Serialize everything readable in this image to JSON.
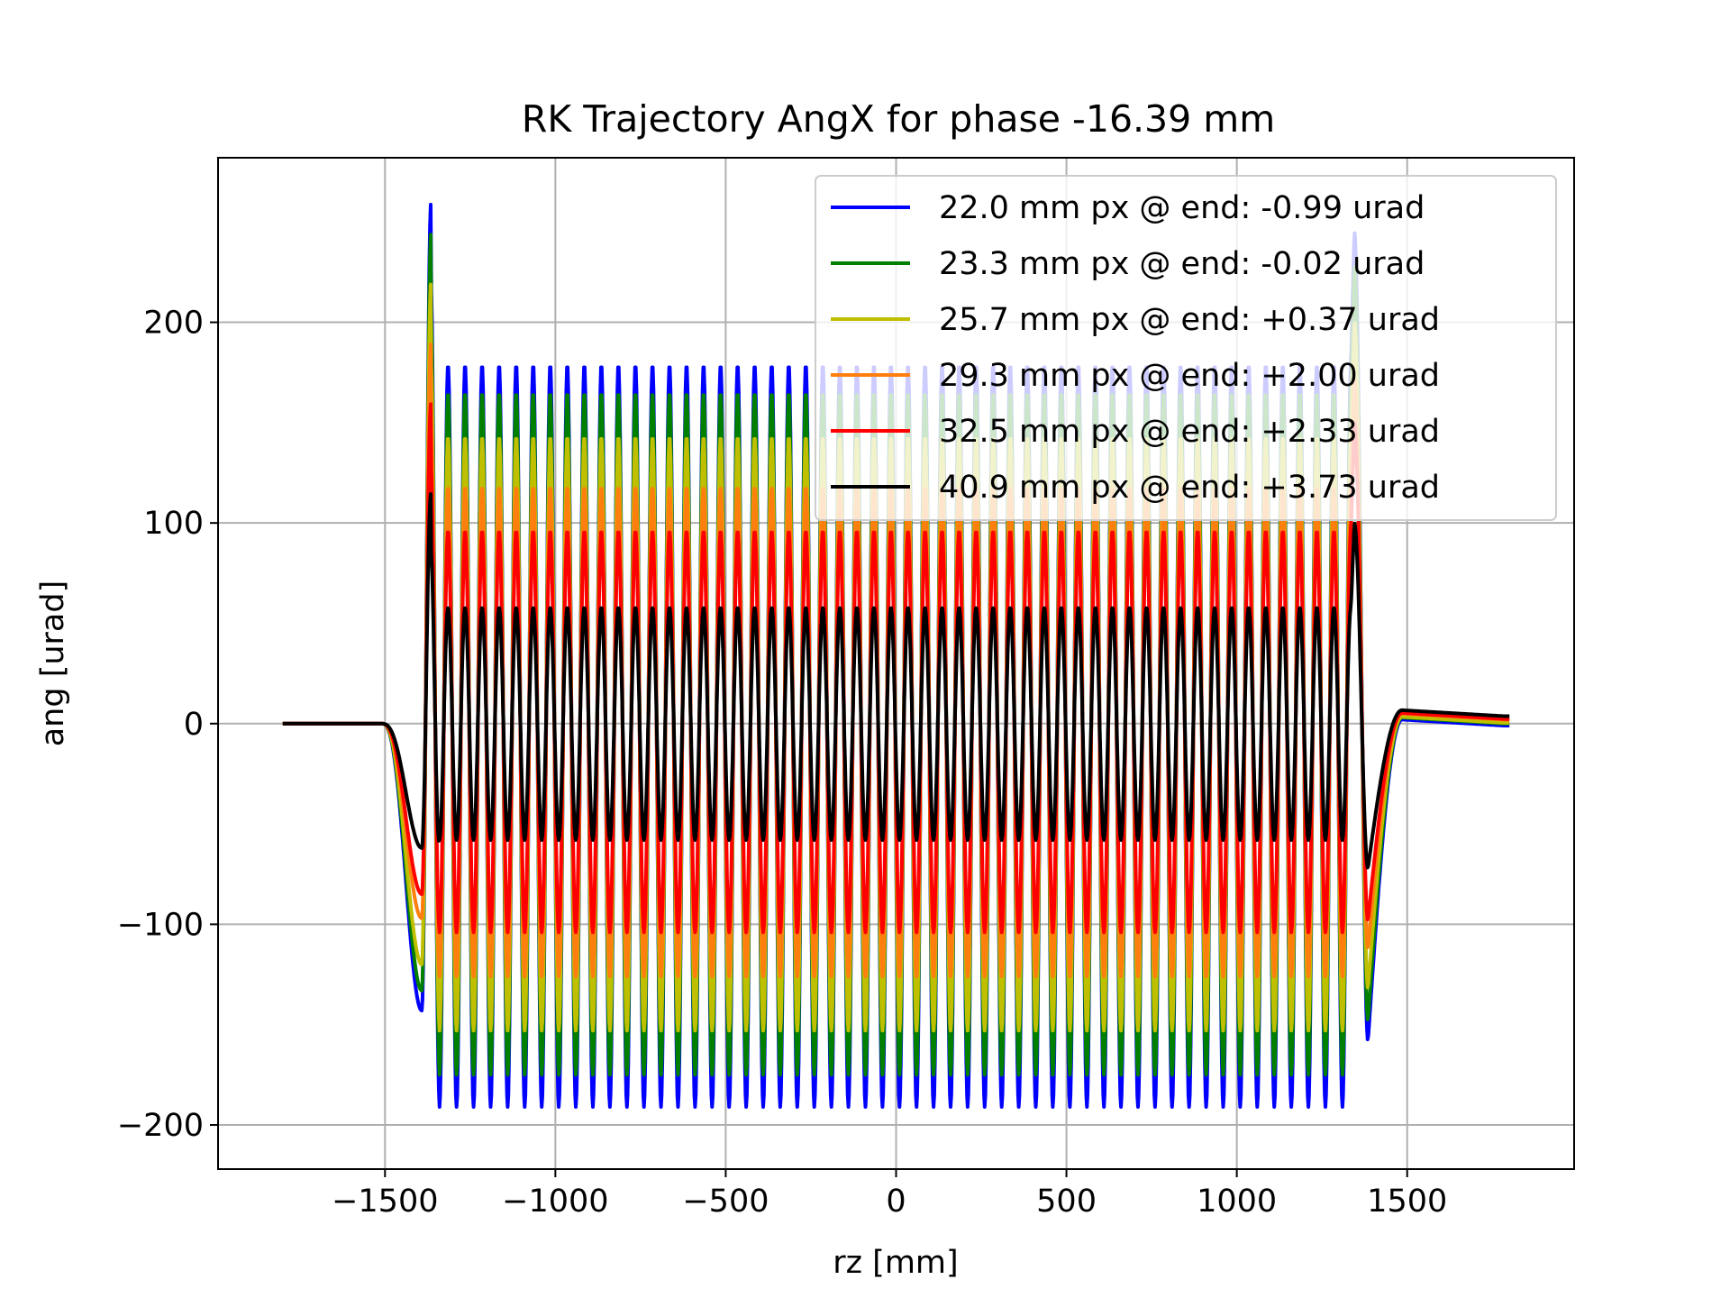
{
  "chart_data": {
    "type": "line",
    "title": "RK Trajectory AngX for phase -16.39 mm",
    "xlabel": "rz [mm]",
    "ylabel": "ang [urad]",
    "xlim": [
      -1990,
      1990
    ],
    "ylim": [
      -222,
      282
    ],
    "xticks": [
      -1500,
      -1000,
      -500,
      0,
      500,
      1000,
      1500
    ],
    "xtick_labels": [
      "−1500",
      "−1000",
      "−500",
      "0",
      "500",
      "1000",
      "1500"
    ],
    "yticks": [
      -200,
      -100,
      0,
      100,
      200
    ],
    "ytick_labels": [
      "−200",
      "−100",
      "0",
      "100",
      "200"
    ],
    "grid": true,
    "legend_position": "top-right",
    "x_range": [
      -1800,
      1800
    ],
    "undulator": {
      "start": -1350,
      "end": 1350,
      "period": 50,
      "first_peak_x": -1375,
      "first_trough_x": -1392,
      "last_peak_x": 1345,
      "last_trough_x": 1365
    },
    "series": [
      {
        "name": "22.0 mm px @ end: -0.99 urad",
        "color": "#0000ff",
        "amplitude": 185,
        "offset": -6,
        "entry_peak": 260,
        "entry_trough": -143,
        "exit_peak": 245,
        "exit_trough": -158,
        "end_value": -1
      },
      {
        "name": "23.3 mm px @ end: -0.02 urad",
        "color": "#008000",
        "amplitude": 170,
        "offset": -5,
        "entry_peak": 245,
        "entry_trough": -133,
        "exit_peak": 228,
        "exit_trough": -148,
        "end_value": 0
      },
      {
        "name": "25.7 mm px @ end: +0.37 urad",
        "color": "#bfbf00",
        "amplitude": 148,
        "offset": -5,
        "entry_peak": 220,
        "entry_trough": -120,
        "exit_peak": 200,
        "exit_trough": -132,
        "end_value": 0.4
      },
      {
        "name": "29.3 mm px @ end: +2.00 urad",
        "color": "#ff7f0e",
        "amplitude": 122,
        "offset": -4,
        "entry_peak": 190,
        "entry_trough": -97,
        "exit_peak": 172,
        "exit_trough": -112,
        "end_value": 2
      },
      {
        "name": "32.5 mm px @ end: +2.33 urad",
        "color": "#ff0000",
        "amplitude": 100,
        "offset": -4,
        "entry_peak": 160,
        "entry_trough": -85,
        "exit_peak": 150,
        "exit_trough": -98,
        "end_value": 2.3
      },
      {
        "name": "40.9 mm px @ end: +3.73 urad",
        "color": "#000000",
        "amplitude": 58,
        "offset": 0,
        "entry_peak": 115,
        "entry_trough": -62,
        "exit_peak": 100,
        "exit_trough": -72,
        "end_value": 3.7
      }
    ]
  }
}
